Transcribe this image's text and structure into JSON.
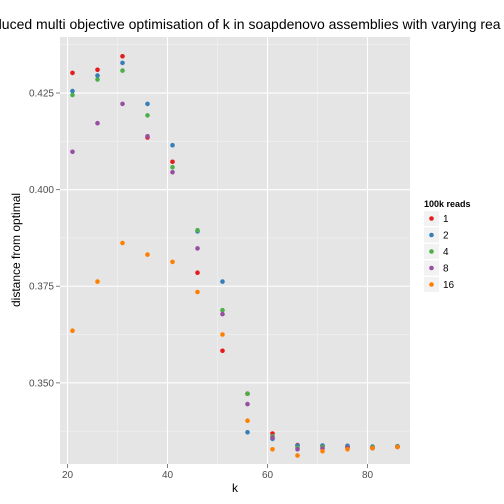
{
  "chart_data": {
    "type": "scatter",
    "title": "duced multi objective optimisation of k in soapdenovo assemblies with varying rea",
    "xlabel": "k",
    "ylabel": "distance from optimal",
    "xlim": [
      18.5,
      88.5
    ],
    "ylim": [
      0.329,
      0.4395
    ],
    "x_ticks": [
      20,
      40,
      60,
      80
    ],
    "y_ticks": [
      0.35,
      0.375,
      0.4,
      0.425
    ],
    "y_tick_labels": [
      "0.350",
      "0.375",
      "0.400",
      "0.425"
    ],
    "grid": true,
    "legend": {
      "title": "100k reads",
      "position": "right"
    },
    "series": [
      {
        "name": "1",
        "color": "#E41A1C",
        "points": [
          [
            21,
            0.4302
          ],
          [
            26,
            0.431
          ],
          [
            31,
            0.4345
          ],
          [
            36,
            0.4135
          ],
          [
            41,
            0.4072
          ],
          [
            46,
            0.3785
          ],
          [
            51,
            0.3583
          ],
          [
            56,
            0.3472
          ],
          [
            61,
            0.3369
          ],
          [
            66,
            0.3339
          ],
          [
            71,
            0.3337
          ],
          [
            76,
            0.3335
          ],
          [
            81,
            0.3333
          ],
          [
            86,
            0.3335
          ]
        ]
      },
      {
        "name": "2",
        "color": "#377EB8",
        "points": [
          [
            21,
            0.4255
          ],
          [
            26,
            0.4295
          ],
          [
            31,
            0.4328
          ],
          [
            36,
            0.4222
          ],
          [
            41,
            0.4115
          ],
          [
            46,
            0.3892
          ],
          [
            51,
            0.3762
          ],
          [
            56,
            0.3372
          ],
          [
            61,
            0.3355
          ],
          [
            66,
            0.3338
          ],
          [
            71,
            0.3338
          ],
          [
            76,
            0.3337
          ],
          [
            81,
            0.3335
          ],
          [
            86,
            0.3336
          ]
        ]
      },
      {
        "name": "4",
        "color": "#4DAF4A",
        "points": [
          [
            21,
            0.4245
          ],
          [
            26,
            0.4285
          ],
          [
            31,
            0.4308
          ],
          [
            36,
            0.4192
          ],
          [
            41,
            0.4058
          ],
          [
            46,
            0.3895
          ],
          [
            51,
            0.3688
          ],
          [
            56,
            0.3472
          ],
          [
            61,
            0.3362
          ],
          [
            66,
            0.3332
          ],
          [
            71,
            0.3334
          ],
          [
            76,
            0.3333
          ],
          [
            81,
            0.3333
          ],
          [
            86,
            0.3335
          ]
        ]
      },
      {
        "name": "8",
        "color": "#984EA3",
        "points": [
          [
            21,
            0.4098
          ],
          [
            26,
            0.4172
          ],
          [
            31,
            0.4222
          ],
          [
            36,
            0.4138
          ],
          [
            41,
            0.4045
          ],
          [
            46,
            0.3848
          ],
          [
            51,
            0.3678
          ],
          [
            56,
            0.3445
          ],
          [
            61,
            0.3358
          ],
          [
            66,
            0.3328
          ],
          [
            71,
            0.333
          ],
          [
            76,
            0.3332
          ],
          [
            81,
            0.3331
          ],
          [
            86,
            0.3334
          ]
        ]
      },
      {
        "name": "16",
        "color": "#FF7F00",
        "points": [
          [
            21,
            0.3635
          ],
          [
            26,
            0.3762
          ],
          [
            31,
            0.3862
          ],
          [
            36,
            0.3832
          ],
          [
            41,
            0.3813
          ],
          [
            46,
            0.3735
          ],
          [
            51,
            0.3625
          ],
          [
            56,
            0.3402
          ],
          [
            61,
            0.3328
          ],
          [
            66,
            0.3312
          ],
          [
            71,
            0.3323
          ],
          [
            76,
            0.3328
          ],
          [
            81,
            0.3331
          ],
          [
            86,
            0.3334
          ]
        ]
      }
    ]
  }
}
